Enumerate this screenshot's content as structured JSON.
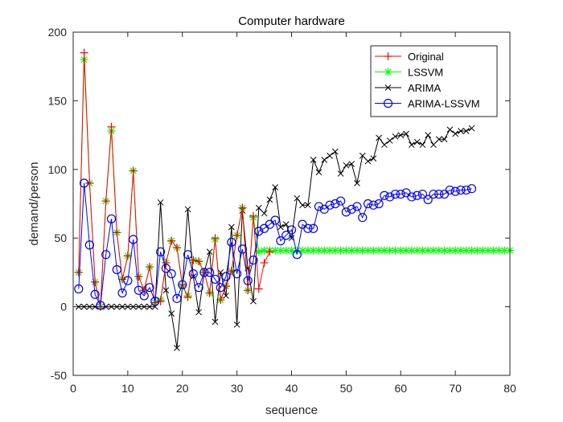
{
  "chart_data": {
    "type": "line",
    "title": "Computer hardware",
    "xlabel": "sequence",
    "ylabel": "demand/person",
    "xlim": [
      0,
      80
    ],
    "ylim": [
      -50,
      200
    ],
    "xticks": [
      "0",
      "10",
      "20",
      "30",
      "40",
      "50",
      "60",
      "70",
      "80"
    ],
    "yticks": [
      "-50",
      "0",
      "50",
      "100",
      "150",
      "200"
    ],
    "grid": false,
    "legend_position": "top-right",
    "series": [
      {
        "name": "Original",
        "color": "#ff0000",
        "marker": "plus",
        "x": [
          1,
          2,
          3,
          4,
          5,
          6,
          7,
          8,
          9,
          10,
          11,
          12,
          13,
          14,
          15,
          16,
          17,
          18,
          19,
          20,
          21,
          22,
          23,
          24,
          25,
          26,
          27,
          28,
          29,
          30,
          31,
          32,
          33,
          34,
          35,
          36
        ],
        "y": [
          25,
          185,
          90,
          18,
          0,
          77,
          131,
          54,
          20,
          37,
          99,
          22,
          12,
          29,
          3,
          4,
          32,
          48,
          43,
          16,
          7,
          34,
          33,
          25,
          10,
          50,
          5,
          15,
          26,
          52,
          72,
          12,
          66,
          13,
          32,
          40
        ]
      },
      {
        "name": "LSSVM",
        "color": "#00ff00",
        "marker": "star",
        "x": [
          1,
          2,
          3,
          4,
          5,
          6,
          7,
          8,
          9,
          10,
          11,
          12,
          13,
          14,
          15,
          16,
          17,
          18,
          19,
          20,
          21,
          22,
          23,
          24,
          25,
          26,
          27,
          28,
          29,
          30,
          31,
          32,
          33,
          34,
          35,
          36,
          37,
          38,
          39,
          40,
          41,
          42,
          43,
          44,
          45,
          46,
          47,
          48,
          49,
          50,
          51,
          52,
          53,
          54,
          55,
          56,
          57,
          58,
          59,
          60,
          61,
          62,
          63,
          64,
          65,
          66,
          67,
          68,
          69,
          70,
          71,
          72,
          73,
          74,
          75,
          76,
          77,
          78,
          79,
          80
        ],
        "y": [
          25,
          180,
          90,
          18,
          0,
          77,
          128,
          54,
          20,
          37,
          99,
          22,
          12,
          29,
          3,
          5,
          32,
          48,
          43,
          15,
          8,
          34,
          33,
          25,
          10,
          49,
          5,
          15,
          26,
          52,
          72,
          12,
          65,
          40,
          41,
          41,
          41,
          41,
          41,
          41,
          41,
          41,
          41,
          41,
          41,
          41,
          41,
          41,
          41,
          41,
          41,
          41,
          41,
          41,
          41,
          41,
          41,
          41,
          41,
          41,
          41,
          41,
          41,
          41,
          41,
          41,
          41,
          41,
          41,
          41,
          41,
          41,
          41,
          41,
          41,
          41,
          41,
          41,
          41,
          41
        ]
      },
      {
        "name": "ARIMA",
        "color": "#000000",
        "marker": "x",
        "x": [
          1,
          2,
          3,
          4,
          5,
          6,
          7,
          8,
          9,
          10,
          11,
          12,
          13,
          14,
          15,
          16,
          17,
          18,
          19,
          20,
          21,
          22,
          23,
          24,
          25,
          26,
          27,
          28,
          29,
          30,
          31,
          32,
          33,
          34,
          35,
          36,
          37,
          38,
          39,
          40,
          41,
          42,
          43,
          44,
          45,
          46,
          47,
          48,
          49,
          50,
          51,
          52,
          53,
          54,
          55,
          56,
          57,
          58,
          59,
          60,
          61,
          62,
          63,
          64,
          65,
          66,
          67,
          68,
          69,
          70,
          71,
          72,
          73
        ],
        "y": [
          0,
          0,
          0,
          0,
          0,
          0,
          0,
          0,
          0,
          0,
          0,
          0,
          0,
          0,
          0,
          76,
          12,
          -5,
          -30,
          15,
          71,
          22,
          -4,
          25,
          40,
          -11,
          25,
          8,
          58,
          -13,
          70,
          28,
          4,
          72,
          68,
          78,
          87,
          58,
          60,
          50,
          79,
          74,
          74,
          107,
          98,
          107,
          110,
          113,
          97,
          103,
          104,
          90,
          110,
          106,
          108,
          123,
          118,
          121,
          124,
          125,
          126,
          118,
          120,
          118,
          125,
          118,
          122,
          122,
          129,
          126,
          128,
          128,
          130
        ]
      },
      {
        "name": "ARIMA-LSSVM",
        "color": "#0000ff",
        "marker": "circle",
        "x": [
          1,
          2,
          3,
          4,
          5,
          6,
          7,
          8,
          9,
          10,
          11,
          12,
          13,
          14,
          15,
          16,
          17,
          18,
          19,
          20,
          21,
          22,
          23,
          24,
          25,
          26,
          27,
          28,
          29,
          30,
          31,
          32,
          33,
          34,
          35,
          36,
          37,
          38,
          39,
          40,
          41,
          42,
          43,
          44,
          45,
          46,
          47,
          48,
          49,
          50,
          51,
          52,
          53,
          54,
          55,
          56,
          57,
          58,
          59,
          60,
          61,
          62,
          63,
          64,
          65,
          66,
          67,
          68,
          69,
          70,
          71,
          72,
          73
        ],
        "y": [
          13,
          90,
          45,
          9,
          1,
          38,
          64,
          27,
          10,
          19,
          49,
          12,
          8,
          14,
          4,
          40,
          28,
          24,
          6,
          16,
          38,
          24,
          14,
          25,
          25,
          20,
          14,
          22,
          47,
          24,
          42,
          19,
          34,
          55,
          57,
          60,
          63,
          48,
          52,
          56,
          38,
          60,
          57,
          57,
          73,
          71,
          74,
          75,
          77,
          69,
          71,
          73,
          65,
          75,
          74,
          75,
          81,
          80,
          82,
          82,
          83,
          80,
          81,
          82,
          78,
          82,
          82,
          82,
          85,
          84,
          85,
          85,
          86
        ]
      }
    ]
  }
}
